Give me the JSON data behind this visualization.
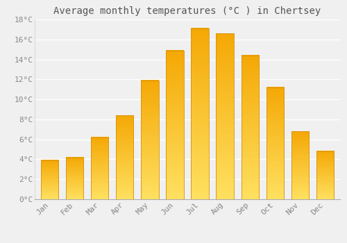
{
  "title": "Average monthly temperatures (°C ) in Chertsey",
  "months": [
    "Jan",
    "Feb",
    "Mar",
    "Apr",
    "May",
    "Jun",
    "Jul",
    "Aug",
    "Sep",
    "Oct",
    "Nov",
    "Dec"
  ],
  "values": [
    3.9,
    4.2,
    6.2,
    8.4,
    11.9,
    14.9,
    17.1,
    16.6,
    14.4,
    11.2,
    6.8,
    4.8
  ],
  "ylim": [
    0,
    18
  ],
  "yticks": [
    0,
    2,
    4,
    6,
    8,
    10,
    12,
    14,
    16,
    18
  ],
  "ytick_labels": [
    "0°C",
    "2°C",
    "4°C",
    "6°C",
    "8°C",
    "10°C",
    "12°C",
    "14°C",
    "16°C",
    "18°C"
  ],
  "background_color": "#f0f0f0",
  "grid_color": "#ffffff",
  "title_fontsize": 10,
  "tick_fontsize": 8,
  "title_color": "#555555",
  "tick_color": "#888888",
  "bar_color_light": "#FFD060",
  "bar_color_dark": "#F5A800",
  "bar_edge_color": "#D4900A",
  "bar_width": 0.7
}
